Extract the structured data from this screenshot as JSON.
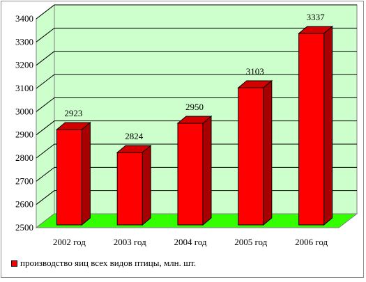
{
  "chart_data": {
    "type": "bar",
    "categories": [
      "2002 год",
      "2003 год",
      "2004 год",
      "2005 год",
      "2006 год"
    ],
    "series": [
      {
        "name": "производство яиц всех видов птицы, млн. шт.",
        "values": [
          2923,
          2824,
          2950,
          3103,
          3337
        ]
      }
    ],
    "data_labels": [
      "2923",
      "2824",
      "2950",
      "3103",
      "3337"
    ],
    "y_ticks": [
      "2500",
      "2600",
      "2700",
      "2800",
      "2900",
      "3000",
      "3100",
      "3200",
      "3300",
      "3400"
    ],
    "ylim": [
      2500,
      3400
    ],
    "title": "",
    "xlabel": "",
    "ylabel": "",
    "grid": true,
    "style": "3d",
    "legend_position": "bottom-left",
    "colors": {
      "bar_front": "#ff0000",
      "bar_side": "#a80000",
      "bar_top": "#d40000",
      "wall": "#ccffcc",
      "floor": "#33ff00",
      "gridline": "#000000"
    }
  }
}
